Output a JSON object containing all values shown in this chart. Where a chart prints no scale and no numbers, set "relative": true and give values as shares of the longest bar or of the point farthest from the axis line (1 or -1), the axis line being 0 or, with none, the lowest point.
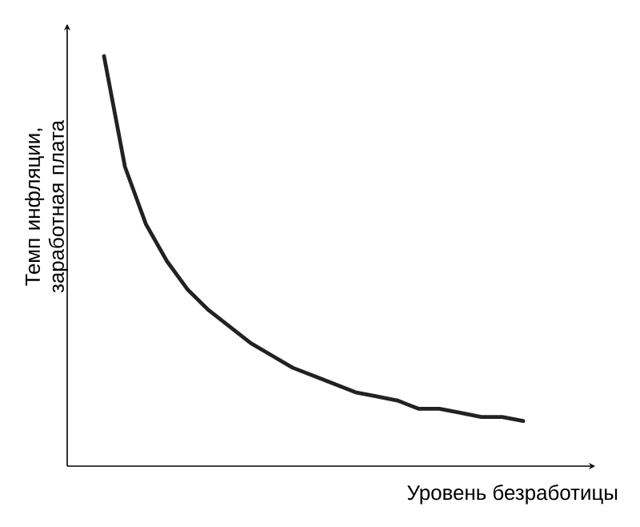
{
  "chart_data": {
    "type": "line",
    "relative": true,
    "tick_labels": false,
    "xlabel": "Уровень безработицы",
    "ylabel": "Темп инфляции, заработная плата",
    "categories": [
      null,
      null,
      null,
      null,
      null,
      null,
      null,
      null,
      null,
      null,
      null,
      null,
      null,
      null,
      null,
      null,
      null,
      null,
      null,
      null,
      null
    ],
    "series": [
      {
        "color": "#222222",
        "values": [
          1,
          0.73,
          0.59,
          0.5,
          0.43,
          0.38,
          0.34,
          0.3,
          0.27,
          0.24,
          0.22,
          0.2,
          0.18,
          0.17,
          0.16,
          0.14,
          0.14,
          0.13,
          0.12,
          0.12,
          0.11
        ]
      }
    ]
  }
}
